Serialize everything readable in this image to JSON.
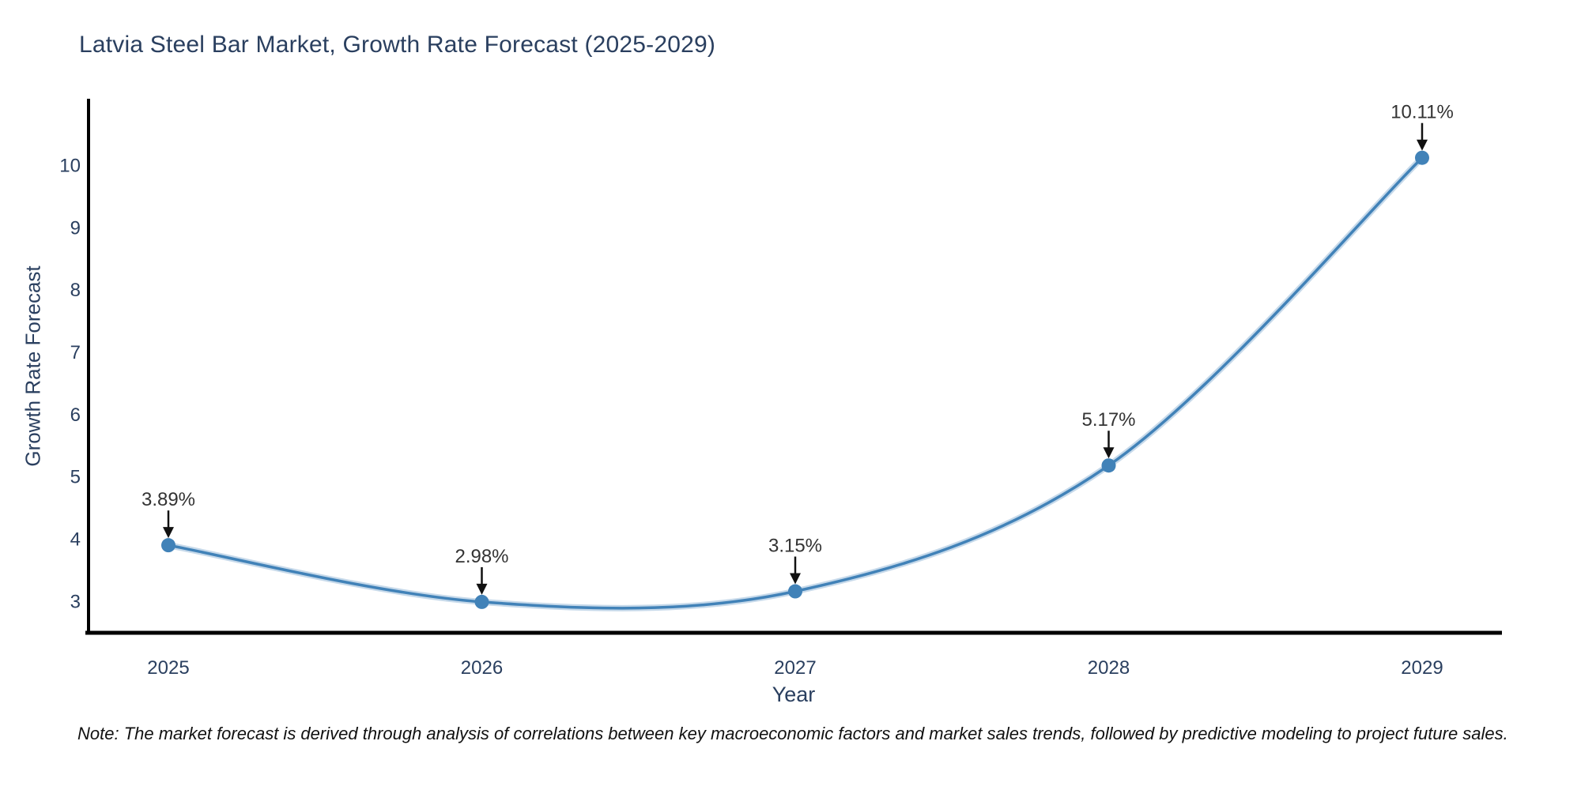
{
  "chart_data": {
    "type": "line",
    "line_shape": "spline",
    "title": "Latvia Steel Bar Market, Growth Rate Forecast (2025-2029)",
    "xlabel": "Year",
    "ylabel": "Growth Rate Forecast",
    "categories": [
      "2025",
      "2026",
      "2027",
      "2028",
      "2029"
    ],
    "values": [
      3.89,
      2.98,
      3.15,
      5.17,
      10.11
    ],
    "point_labels": [
      "3.89%",
      "2.98%",
      "3.15%",
      "5.17%",
      "10.11%"
    ],
    "unit": "%",
    "y_ticks": [
      3,
      4,
      5,
      6,
      7,
      8,
      9,
      10
    ],
    "ylim": [
      2.45,
      11.1
    ],
    "grid": false,
    "legend_position": "none",
    "annotations": [
      {
        "x": "2025",
        "y": 3.89,
        "text": "3.89%",
        "arrow": "down"
      },
      {
        "x": "2026",
        "y": 2.98,
        "text": "2.98%",
        "arrow": "down"
      },
      {
        "x": "2027",
        "y": 3.15,
        "text": "3.15%",
        "arrow": "down"
      },
      {
        "x": "2028",
        "y": 5.17,
        "text": "5.17%",
        "arrow": "down"
      },
      {
        "x": "2029",
        "y": 10.11,
        "text": "10.11%",
        "arrow": "down"
      }
    ],
    "note": "Note: The market forecast is derived through analysis of correlations between key macroeconomic factors and market sales trends, followed by predictive modeling to project future sales.",
    "colors": {
      "line": "#4182b8",
      "line_halo": "rgba(65,130,184,0.30)",
      "marker": "#4182b8",
      "axis": "#000000",
      "axis_text": "#2a3f5f",
      "annotation_text": "#333333",
      "arrow": "#111111",
      "background": "#ffffff"
    }
  }
}
